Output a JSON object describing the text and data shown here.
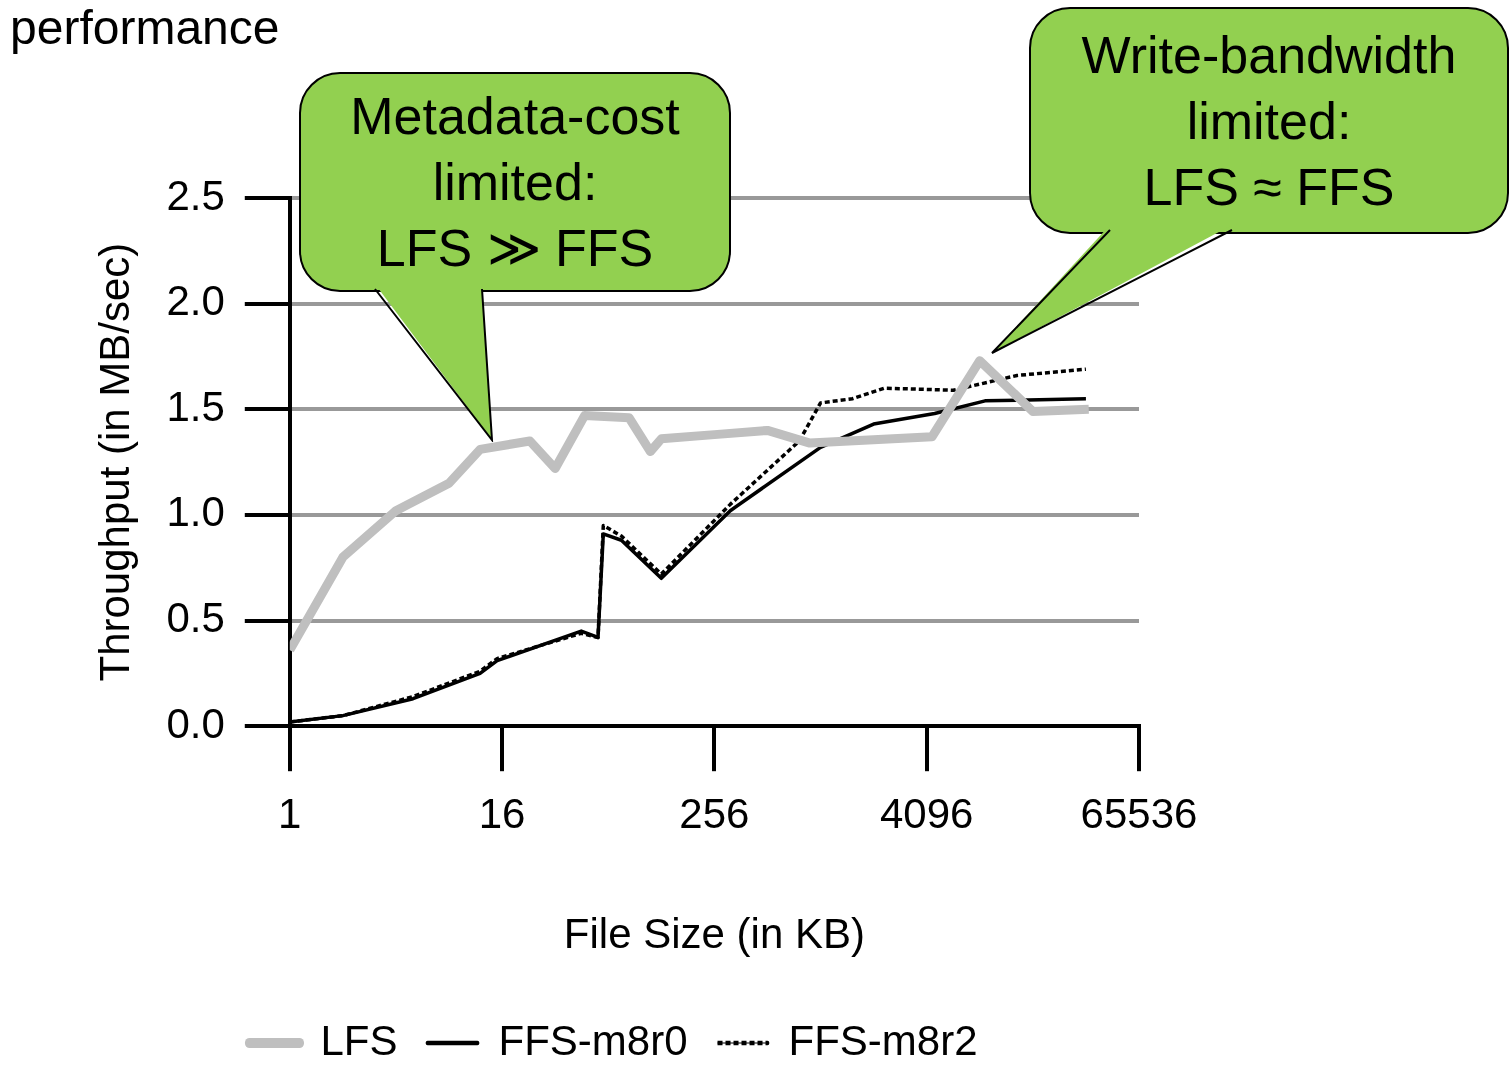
{
  "chart_data": {
    "type": "line",
    "title": "performance",
    "xlabel": "File Size (in KB)",
    "ylabel": "Throughput (in MB/sec)",
    "log": "x",
    "xlim": [
      1,
      65536
    ],
    "xticks": [
      1,
      16,
      256,
      4096,
      65536
    ],
    "ylim": [
      0,
      2.5
    ],
    "yticks": [
      {
        "value": 0,
        "label": "0.0"
      },
      {
        "value": 0.5,
        "label": "0.5"
      },
      {
        "value": 1,
        "label": "1.0"
      },
      {
        "value": 1.5,
        "label": "1.5"
      },
      {
        "value": 2,
        "label": "2.0"
      },
      {
        "value": 2.5,
        "label": "2.5"
      }
    ],
    "grid": "y",
    "legend": "bottom",
    "marker": "none",
    "series": [
      {
        "name": "LFS",
        "color": "#bfbfbf",
        "x": [
          1,
          2,
          4,
          8,
          12,
          23,
          32,
          47,
          84,
          111,
          128,
          256,
          512,
          891,
          4390,
          8192,
          16384,
          34000
        ],
        "values": [
          0.36,
          0.8,
          1.02,
          1.15,
          1.31,
          1.35,
          1.22,
          1.47,
          1.46,
          1.3,
          1.36,
          1.38,
          1.4,
          1.34,
          1.37,
          1.73,
          1.49,
          1.5
        ]
      },
      {
        "name": "FFS-m8r0",
        "color": "#000000",
        "line_style": "solid",
        "x": [
          1,
          2,
          5,
          12,
          15,
          45,
          56,
          60,
          76,
          128,
          315,
          1024,
          2048,
          4545,
          8780,
          32768
        ],
        "values": [
          0.02,
          0.05,
          0.13,
          0.25,
          0.31,
          0.45,
          0.42,
          0.91,
          0.88,
          0.7,
          1.02,
          1.32,
          1.43,
          1.48,
          1.54,
          1.55
        ]
      },
      {
        "name": "FFS-m8r2",
        "color": "#000000",
        "line_style": "dotted",
        "x": [
          1,
          2,
          5,
          12,
          15,
          45,
          56,
          60,
          76,
          128,
          315,
          776,
          1024,
          1552,
          2353,
          5793,
          13308,
          32768
        ],
        "values": [
          0.02,
          0.05,
          0.14,
          0.26,
          0.32,
          0.44,
          0.42,
          0.95,
          0.9,
          0.72,
          1.05,
          1.35,
          1.53,
          1.55,
          1.6,
          1.59,
          1.66,
          1.69
        ]
      }
    ],
    "annotations": [
      "Metadata-cost\nlimited:\nLFS ≫ FFS",
      "Write-bandwidth\nlimited:\nLFS ≈ FFS"
    ]
  }
}
